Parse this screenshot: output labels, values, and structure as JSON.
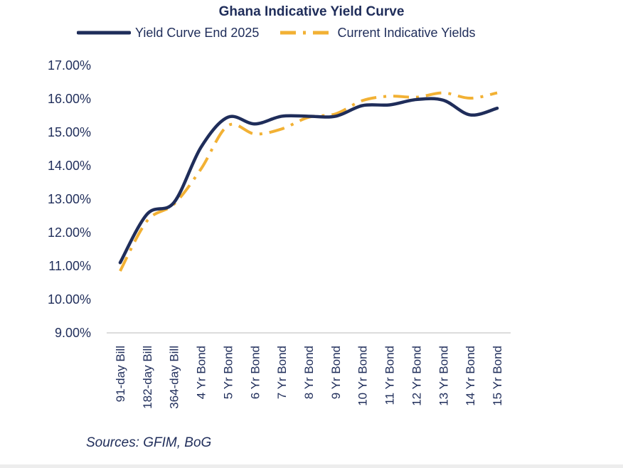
{
  "chart_data": {
    "type": "line",
    "title": "Ghana Indicative Yield Curve",
    "categories": [
      "91-day Bill",
      "182-day Bill",
      "364-day Bill",
      "4 Yr Bond",
      "5 Yr Bond",
      "6 Yr Bond",
      "7 Yr Bond",
      "8 Yr Bond",
      "9 Yr Bond",
      "10 Yr Bond",
      "11 Yr Bond",
      "12 Yr Bond",
      "13 Yr Bond",
      "14 Yr Bond",
      "15 Yr Bond"
    ],
    "series": [
      {
        "name": "Yield Curve End 2025",
        "color": "#1f2d5a",
        "style": "solid",
        "values": [
          11.1,
          12.55,
          12.9,
          14.55,
          15.45,
          15.25,
          15.48,
          15.48,
          15.48,
          15.8,
          15.82,
          15.98,
          15.96,
          15.52,
          15.72
        ]
      },
      {
        "name": "Current Indicative Yields",
        "color": "#f2b134",
        "style": "dash-dot",
        "values": [
          10.85,
          12.35,
          12.85,
          13.9,
          15.2,
          14.95,
          15.1,
          15.45,
          15.55,
          15.95,
          16.08,
          16.05,
          16.18,
          16.02,
          16.18
        ]
      }
    ],
    "ylim": [
      9.0,
      17.0
    ],
    "yticks": [
      "9.00%",
      "10.00%",
      "11.00%",
      "12.00%",
      "13.00%",
      "14.00%",
      "15.00%",
      "16.00%",
      "17.00%"
    ],
    "grid": false,
    "legend_position": "top"
  },
  "legend": {
    "series1": "Yield Curve End 2025",
    "series2": "Current Indicative Yields"
  },
  "source": "Sources: GFIM, BoG"
}
